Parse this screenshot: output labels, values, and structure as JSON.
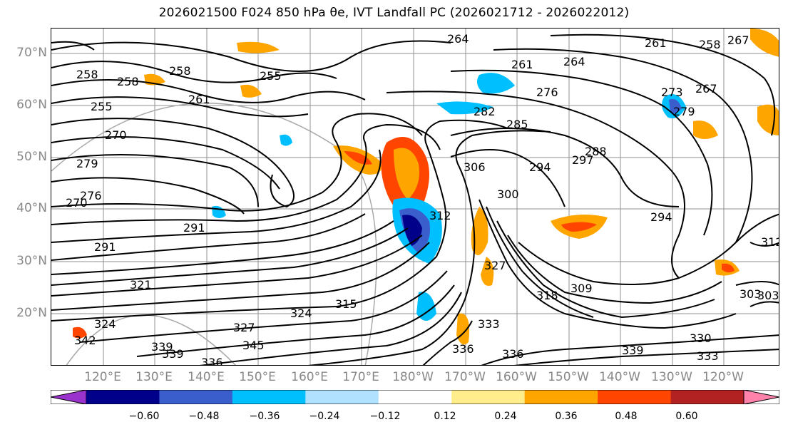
{
  "title": "2026021500 F024 850 hPa θe, IVT Landfall PC (2026021712 - 2026022012)",
  "map": {
    "lat_labels": [
      "70°N",
      "60°N",
      "50°N",
      "40°N",
      "30°N",
      "20°N"
    ],
    "lon_labels": [
      "120°E",
      "130°E",
      "140°E",
      "150°E",
      "160°E",
      "170°E",
      "180°W",
      "170°W",
      "160°W",
      "150°W",
      "140°W",
      "130°W",
      "120°W"
    ],
    "contour_labels": [
      "264",
      "261",
      "255",
      "261",
      "258",
      "258",
      "258",
      "255",
      "261",
      "264",
      "276",
      "273",
      "267",
      "258",
      "267",
      "279",
      "270",
      "282",
      "285",
      "288",
      "291",
      "279",
      "294",
      "300",
      "306",
      "297",
      "294",
      "291",
      "327",
      "318",
      "309",
      "303",
      "321",
      "315",
      "333",
      "324",
      "327",
      "312",
      "330",
      "345",
      "339",
      "336",
      "339",
      "336",
      "333",
      "342",
      "303",
      "339",
      "336",
      "324",
      "270",
      "276",
      "312"
    ],
    "contour_color": "#000000",
    "grid_color": "#808080"
  },
  "colorbar": {
    "tick_labels": [
      "−0.60",
      "−0.48",
      "−0.36",
      "−0.24",
      "−0.12",
      "0.12",
      "0.24",
      "0.36",
      "0.48",
      "0.60"
    ],
    "colors": [
      "#9a32cd",
      "#00008b",
      "#3a5fcd",
      "#00bfff",
      "#b0e2ff",
      "#ffffff",
      "#ffec8b",
      "#ffa500",
      "#ff4500",
      "#b22222",
      "#ff82ab"
    ]
  }
}
